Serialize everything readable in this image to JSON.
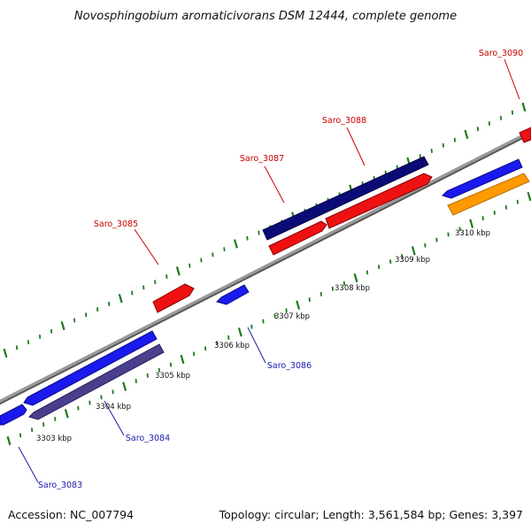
{
  "title": "Novosphingobium aromaticivorans DSM 12444, complete genome",
  "footer": {
    "accession": "Accession: NC_007794",
    "topology": "Topology: circular; Length: 3,561,584 bp; Genes: 3,397"
  },
  "colors": {
    "backbone": "#8c8c8c",
    "tick": "#1e7a1e",
    "forward_gene": "#ee1111",
    "forward_gene_dark": "#0b0b78",
    "reverse_gene": "#1a1aee",
    "reverse_gene_dark": "#4a3f8c",
    "orange_gene": "#ff9900",
    "label_red": "#cc0000",
    "label_blue": "#1a1aaa"
  },
  "kbp_labels": [
    "3303 kbp",
    "3304 kbp",
    "3305 kbp",
    "3306 kbp",
    "3307 kbp",
    "3308 kbp",
    "3309 kbp",
    "3310 kbp"
  ],
  "genes_top": [
    "Saro_3085",
    "Saro_3087",
    "Saro_3088",
    "Saro_3090"
  ],
  "genes_bottom": [
    "Saro_3083",
    "Saro_3084",
    "Saro_3086"
  ]
}
